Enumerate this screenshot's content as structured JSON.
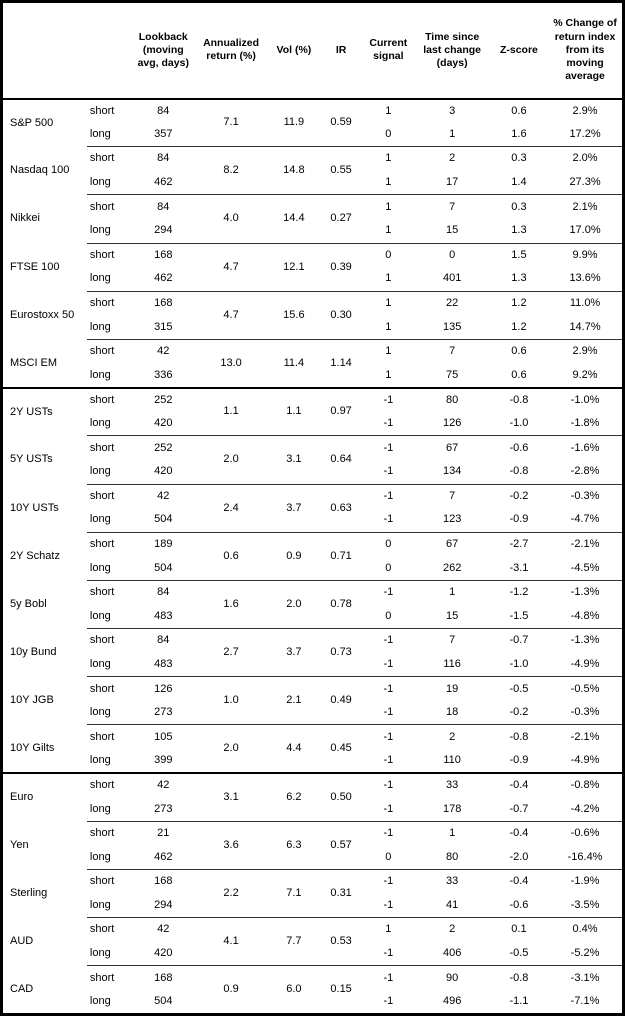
{
  "colors": {
    "background": "#ffffff",
    "text": "#000000",
    "grid_line": "#333333",
    "section_line": "#000000",
    "outer_border": "#000000"
  },
  "chart_data": {
    "type": "table",
    "title": "",
    "columns": [
      "",
      "",
      "Lookback (moving avg, days)",
      "Annualized return (%)",
      "Vol (%)",
      "IR",
      "Current signal",
      "Time since last change (days)",
      "Z-score",
      "% Change of return index from its moving average"
    ],
    "assets": [
      {
        "name": "S&P 500",
        "ann_return": "7.1",
        "vol": "11.9",
        "ir": "0.59",
        "section_end": false,
        "rows": [
          {
            "horizon": "short",
            "lookback": "84",
            "signal": "1",
            "days": "3",
            "zscore": "0.6",
            "pct_change": "2.9%"
          },
          {
            "horizon": "long",
            "lookback": "357",
            "signal": "0",
            "days": "1",
            "zscore": "1.6",
            "pct_change": "17.2%"
          }
        ]
      },
      {
        "name": "Nasdaq 100",
        "ann_return": "8.2",
        "vol": "14.8",
        "ir": "0.55",
        "section_end": false,
        "rows": [
          {
            "horizon": "short",
            "lookback": "84",
            "signal": "1",
            "days": "2",
            "zscore": "0.3",
            "pct_change": "2.0%"
          },
          {
            "horizon": "long",
            "lookback": "462",
            "signal": "1",
            "days": "17",
            "zscore": "1.4",
            "pct_change": "27.3%"
          }
        ]
      },
      {
        "name": "Nikkei",
        "ann_return": "4.0",
        "vol": "14.4",
        "ir": "0.27",
        "section_end": false,
        "rows": [
          {
            "horizon": "short",
            "lookback": "84",
            "signal": "1",
            "days": "7",
            "zscore": "0.3",
            "pct_change": "2.1%"
          },
          {
            "horizon": "long",
            "lookback": "294",
            "signal": "1",
            "days": "15",
            "zscore": "1.3",
            "pct_change": "17.0%"
          }
        ]
      },
      {
        "name": "FTSE 100",
        "ann_return": "4.7",
        "vol": "12.1",
        "ir": "0.39",
        "section_end": false,
        "rows": [
          {
            "horizon": "short",
            "lookback": "168",
            "signal": "0",
            "days": "0",
            "zscore": "1.5",
            "pct_change": "9.9%"
          },
          {
            "horizon": "long",
            "lookback": "462",
            "signal": "1",
            "days": "401",
            "zscore": "1.3",
            "pct_change": "13.6%"
          }
        ]
      },
      {
        "name": "Eurostoxx 50",
        "ann_return": "4.7",
        "vol": "15.6",
        "ir": "0.30",
        "section_end": false,
        "rows": [
          {
            "horizon": "short",
            "lookback": "168",
            "signal": "1",
            "days": "22",
            "zscore": "1.2",
            "pct_change": "11.0%"
          },
          {
            "horizon": "long",
            "lookback": "315",
            "signal": "1",
            "days": "135",
            "zscore": "1.2",
            "pct_change": "14.7%"
          }
        ]
      },
      {
        "name": "MSCI EM",
        "ann_return": "13.0",
        "vol": "11.4",
        "ir": "1.14",
        "section_end": true,
        "rows": [
          {
            "horizon": "short",
            "lookback": "42",
            "signal": "1",
            "days": "7",
            "zscore": "0.6",
            "pct_change": "2.9%"
          },
          {
            "horizon": "long",
            "lookback": "336",
            "signal": "1",
            "days": "75",
            "zscore": "0.6",
            "pct_change": "9.2%"
          }
        ]
      },
      {
        "name": "2Y USTs",
        "ann_return": "1.1",
        "vol": "1.1",
        "ir": "0.97",
        "section_end": false,
        "rows": [
          {
            "horizon": "short",
            "lookback": "252",
            "signal": "-1",
            "days": "80",
            "zscore": "-0.8",
            "pct_change": "-1.0%"
          },
          {
            "horizon": "long",
            "lookback": "420",
            "signal": "-1",
            "days": "126",
            "zscore": "-1.0",
            "pct_change": "-1.8%"
          }
        ]
      },
      {
        "name": "5Y USTs",
        "ann_return": "2.0",
        "vol": "3.1",
        "ir": "0.64",
        "section_end": false,
        "rows": [
          {
            "horizon": "short",
            "lookback": "252",
            "signal": "-1",
            "days": "67",
            "zscore": "-0.6",
            "pct_change": "-1.6%"
          },
          {
            "horizon": "long",
            "lookback": "420",
            "signal": "-1",
            "days": "134",
            "zscore": "-0.8",
            "pct_change": "-2.8%"
          }
        ]
      },
      {
        "name": "10Y USTs",
        "ann_return": "2.4",
        "vol": "3.7",
        "ir": "0.63",
        "section_end": false,
        "rows": [
          {
            "horizon": "short",
            "lookback": "42",
            "signal": "-1",
            "days": "7",
            "zscore": "-0.2",
            "pct_change": "-0.3%"
          },
          {
            "horizon": "long",
            "lookback": "504",
            "signal": "-1",
            "days": "123",
            "zscore": "-0.9",
            "pct_change": "-4.7%"
          }
        ]
      },
      {
        "name": "2Y Schatz",
        "ann_return": "0.6",
        "vol": "0.9",
        "ir": "0.71",
        "section_end": false,
        "rows": [
          {
            "horizon": "short",
            "lookback": "189",
            "signal": "0",
            "days": "67",
            "zscore": "-2.7",
            "pct_change": "-2.1%"
          },
          {
            "horizon": "long",
            "lookback": "504",
            "signal": "0",
            "days": "262",
            "zscore": "-3.1",
            "pct_change": "-4.5%"
          }
        ]
      },
      {
        "name": "5y Bobl",
        "ann_return": "1.6",
        "vol": "2.0",
        "ir": "0.78",
        "section_end": false,
        "rows": [
          {
            "horizon": "short",
            "lookback": "84",
            "signal": "-1",
            "days": "1",
            "zscore": "-1.2",
            "pct_change": "-1.3%"
          },
          {
            "horizon": "long",
            "lookback": "483",
            "signal": "0",
            "days": "15",
            "zscore": "-1.5",
            "pct_change": "-4.8%"
          }
        ]
      },
      {
        "name": "10y Bund",
        "ann_return": "2.7",
        "vol": "3.7",
        "ir": "0.73",
        "section_end": false,
        "rows": [
          {
            "horizon": "short",
            "lookback": "84",
            "signal": "-1",
            "days": "7",
            "zscore": "-0.7",
            "pct_change": "-1.3%"
          },
          {
            "horizon": "long",
            "lookback": "483",
            "signal": "-1",
            "days": "116",
            "zscore": "-1.0",
            "pct_change": "-4.9%"
          }
        ]
      },
      {
        "name": "10Y JGB",
        "ann_return": "1.0",
        "vol": "2.1",
        "ir": "0.49",
        "section_end": false,
        "rows": [
          {
            "horizon": "short",
            "lookback": "126",
            "signal": "-1",
            "days": "19",
            "zscore": "-0.5",
            "pct_change": "-0.5%"
          },
          {
            "horizon": "long",
            "lookback": "273",
            "signal": "-1",
            "days": "18",
            "zscore": "-0.2",
            "pct_change": "-0.3%"
          }
        ]
      },
      {
        "name": "10Y Gilts",
        "ann_return": "2.0",
        "vol": "4.4",
        "ir": "0.45",
        "section_end": true,
        "rows": [
          {
            "horizon": "short",
            "lookback": "105",
            "signal": "-1",
            "days": "2",
            "zscore": "-0.8",
            "pct_change": "-2.1%"
          },
          {
            "horizon": "long",
            "lookback": "399",
            "signal": "-1",
            "days": "110",
            "zscore": "-0.9",
            "pct_change": "-4.9%"
          }
        ]
      },
      {
        "name": "Euro",
        "ann_return": "3.1",
        "vol": "6.2",
        "ir": "0.50",
        "section_end": false,
        "rows": [
          {
            "horizon": "short",
            "lookback": "42",
            "signal": "-1",
            "days": "33",
            "zscore": "-0.4",
            "pct_change": "-0.8%"
          },
          {
            "horizon": "long",
            "lookback": "273",
            "signal": "-1",
            "days": "178",
            "zscore": "-0.7",
            "pct_change": "-4.2%"
          }
        ]
      },
      {
        "name": "Yen",
        "ann_return": "3.6",
        "vol": "6.3",
        "ir": "0.57",
        "section_end": false,
        "rows": [
          {
            "horizon": "short",
            "lookback": "21",
            "signal": "-1",
            "days": "1",
            "zscore": "-0.4",
            "pct_change": "-0.6%"
          },
          {
            "horizon": "long",
            "lookback": "462",
            "signal": "0",
            "days": "80",
            "zscore": "-2.0",
            "pct_change": "-16.4%"
          }
        ]
      },
      {
        "name": "Sterling",
        "ann_return": "2.2",
        "vol": "7.1",
        "ir": "0.31",
        "section_end": false,
        "rows": [
          {
            "horizon": "short",
            "lookback": "168",
            "signal": "-1",
            "days": "33",
            "zscore": "-0.4",
            "pct_change": "-1.9%"
          },
          {
            "horizon": "long",
            "lookback": "294",
            "signal": "-1",
            "days": "41",
            "zscore": "-0.6",
            "pct_change": "-3.5%"
          }
        ]
      },
      {
        "name": "AUD",
        "ann_return": "4.1",
        "vol": "7.7",
        "ir": "0.53",
        "section_end": false,
        "rows": [
          {
            "horizon": "short",
            "lookback": "42",
            "signal": "1",
            "days": "2",
            "zscore": "0.1",
            "pct_change": "0.4%"
          },
          {
            "horizon": "long",
            "lookback": "420",
            "signal": "-1",
            "days": "406",
            "zscore": "-0.5",
            "pct_change": "-5.2%"
          }
        ]
      },
      {
        "name": "CAD",
        "ann_return": "0.9",
        "vol": "6.0",
        "ir": "0.15",
        "section_end": false,
        "rows": [
          {
            "horizon": "short",
            "lookback": "168",
            "signal": "-1",
            "days": "90",
            "zscore": "-0.8",
            "pct_change": "-3.1%"
          },
          {
            "horizon": "long",
            "lookback": "504",
            "signal": "-1",
            "days": "496",
            "zscore": "-1.1",
            "pct_change": "-7.1%"
          }
        ]
      }
    ]
  }
}
